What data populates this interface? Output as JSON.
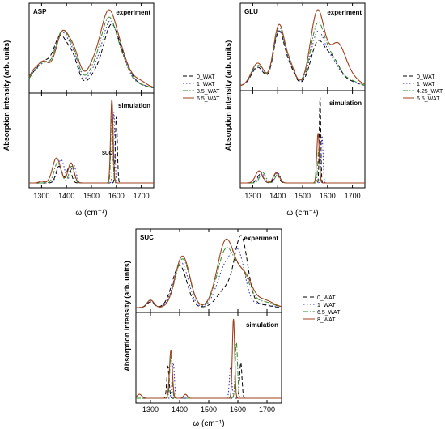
{
  "figure": {
    "ylabel": "Absorption intensity (arb. units)",
    "xlabel": "ω (cm⁻¹)"
  },
  "chart_data": [
    {
      "type": "line",
      "panel": "ASP",
      "xlim": [
        1250,
        1750
      ],
      "xticks": [
        1300,
        1400,
        1500,
        1600,
        1700
      ],
      "legend": [
        "0_WAT",
        "1_WAT",
        "3.5_WAT",
        "6.5_WAT"
      ],
      "subplots": [
        {
          "label": "experiment",
          "series": [
            {
              "name": "0_WAT",
              "peaks": [
                [
                  1262,
                  0.1,
                  18
                ],
                [
                  1305,
                  0.25,
                  25
                ],
                [
                  1375,
                  0.55,
                  30
                ],
                [
                  1428,
                  0.25,
                  22
                ],
                [
                  1520,
                  0.15,
                  30
                ],
                [
                  1580,
                  0.64,
                  30
                ],
                [
                  1635,
                  0.2,
                  28
                ],
                [
                  1690,
                  0.03,
                  30
                ]
              ]
            },
            {
              "name": "1_WAT",
              "peaks": [
                [
                  1262,
                  0.1,
                  18
                ],
                [
                  1305,
                  0.24,
                  25
                ],
                [
                  1380,
                  0.58,
                  30
                ],
                [
                  1430,
                  0.24,
                  22
                ],
                [
                  1515,
                  0.18,
                  30
                ],
                [
                  1575,
                  0.67,
                  30
                ],
                [
                  1630,
                  0.22,
                  28
                ],
                [
                  1690,
                  0.04,
                  30
                ]
              ]
            },
            {
              "name": "3.5_WAT",
              "peaks": [
                [
                  1262,
                  0.1,
                  18
                ],
                [
                  1305,
                  0.26,
                  25
                ],
                [
                  1382,
                  0.6,
                  30
                ],
                [
                  1432,
                  0.25,
                  22
                ],
                [
                  1512,
                  0.2,
                  30
                ],
                [
                  1570,
                  0.7,
                  30
                ],
                [
                  1625,
                  0.24,
                  28
                ],
                [
                  1690,
                  0.04,
                  30
                ]
              ]
            },
            {
              "name": "6.5_WAT",
              "peaks": [
                [
                  1262,
                  0.12,
                  18
                ],
                [
                  1305,
                  0.27,
                  25
                ],
                [
                  1385,
                  0.6,
                  30
                ],
                [
                  1435,
                  0.26,
                  22
                ],
                [
                  1510,
                  0.24,
                  30
                ],
                [
                  1568,
                  0.74,
                  30
                ],
                [
                  1620,
                  0.3,
                  30
                ],
                [
                  1690,
                  0.08,
                  30
                ]
              ]
            }
          ]
        },
        {
          "label": "simulation",
          "annotation": "SUC",
          "series": [
            {
              "name": "0_WAT",
              "peaks": [
                [
                  1370,
                  0.2,
                  12
                ],
                [
                  1410,
                  0.18,
                  10
                ],
                [
                  1600,
                  0.8,
                  4
                ]
              ]
            },
            {
              "name": "1_WAT",
              "peaks": [
                [
                  1378,
                  0.28,
                  14
                ],
                [
                  1428,
                  0.22,
                  10
                ],
                [
                  1590,
                  0.85,
                  4
                ]
              ]
            },
            {
              "name": "3.5_WAT",
              "peaks": [
                [
                  1365,
                  0.25,
                  14
                ],
                [
                  1420,
                  0.2,
                  10
                ],
                [
                  1582,
                  0.9,
                  4
                ]
              ]
            },
            {
              "name": "6.5_WAT",
              "peaks": [
                [
                  1300,
                  0.02,
                  10
                ],
                [
                  1360,
                  0.3,
                  16
                ],
                [
                  1418,
                  0.24,
                  12
                ],
                [
                  1582,
                  1.0,
                  5
                ]
              ]
            }
          ]
        }
      ]
    },
    {
      "type": "line",
      "panel": "GLU",
      "xlim": [
        1250,
        1750
      ],
      "xticks": [
        1300,
        1400,
        1500,
        1600,
        1700
      ],
      "legend": [
        "0_WAT",
        "1_WAT",
        "4.25_WAT",
        "6.5_WAT"
      ],
      "subplots": [
        {
          "label": "experiment",
          "series": [
            {
              "name": "0_WAT",
              "peaks": [
                [
                  1320,
                  0.18,
                  25
                ],
                [
                  1405,
                  0.52,
                  22
                ],
                [
                  1450,
                  0.15,
                  20
                ],
                [
                  1560,
                  0.4,
                  28
                ],
                [
                  1620,
                  0.25,
                  30
                ],
                [
                  1690,
                  0.04,
                  30
                ]
              ]
            },
            {
              "name": "1_WAT",
              "peaks": [
                [
                  1320,
                  0.18,
                  25
                ],
                [
                  1405,
                  0.52,
                  22
                ],
                [
                  1450,
                  0.16,
                  20
                ],
                [
                  1560,
                  0.5,
                  28
                ],
                [
                  1620,
                  0.22,
                  30
                ],
                [
                  1690,
                  0.04,
                  30
                ]
              ]
            },
            {
              "name": "4.25_WAT",
              "peaks": [
                [
                  1320,
                  0.2,
                  25
                ],
                [
                  1405,
                  0.55,
                  22
                ],
                [
                  1450,
                  0.17,
                  20
                ],
                [
                  1560,
                  0.58,
                  28
                ],
                [
                  1620,
                  0.24,
                  30
                ],
                [
                  1690,
                  0.05,
                  30
                ]
              ]
            },
            {
              "name": "6.5_WAT",
              "peaks": [
                [
                  1320,
                  0.22,
                  25
                ],
                [
                  1405,
                  0.58,
                  22
                ],
                [
                  1450,
                  0.18,
                  20
                ],
                [
                  1560,
                  0.72,
                  28
                ],
                [
                  1640,
                  0.4,
                  32
                ],
                [
                  1700,
                  0.06,
                  30
                ]
              ]
            }
          ]
        },
        {
          "label": "simulation",
          "series": [
            {
              "name": "0_WAT",
              "peaks": [
                [
                  1330,
                  0.1,
                  12
                ],
                [
                  1395,
                  0.12,
                  10
                ],
                [
                  1570,
                  1.0,
                  3
                ]
              ]
            },
            {
              "name": "1_WAT",
              "peaks": [
                [
                  1335,
                  0.12,
                  12
                ],
                [
                  1400,
                  0.12,
                  10
                ],
                [
                  1578,
                  0.55,
                  4
                ]
              ]
            },
            {
              "name": "4.25_WAT",
              "peaks": [
                [
                  1340,
                  0.12,
                  12
                ],
                [
                  1400,
                  0.1,
                  10
                ],
                [
                  1565,
                  0.4,
                  4
                ]
              ]
            },
            {
              "name": "6.5_WAT",
              "peaks": [
                [
                  1325,
                  0.14,
                  14
                ],
                [
                  1395,
                  0.12,
                  12
                ],
                [
                  1562,
                  0.58,
                  5
                ]
              ]
            }
          ]
        }
      ]
    },
    {
      "type": "line",
      "panel": "SUC",
      "xlim": [
        1250,
        1750
      ],
      "xticks": [
        1300,
        1400,
        1500,
        1600,
        1700
      ],
      "legend": [
        "0_WAT",
        "1_WAT",
        "6.5_WAT",
        "8_WAT"
      ],
      "subplots": [
        {
          "label": "experiment",
          "series": [
            {
              "name": "0_WAT",
              "peaks": [
                [
                  1300,
                  0.06,
                  12
                ],
                [
                  1400,
                  0.45,
                  25
                ],
                [
                  1560,
                  0.2,
                  30
                ],
                [
                  1612,
                  0.72,
                  22
                ],
                [
                  1680,
                  0.03,
                  30
                ]
              ]
            },
            {
              "name": "1_WAT",
              "peaks": [
                [
                  1300,
                  0.07,
                  12
                ],
                [
                  1405,
                  0.48,
                  25
                ],
                [
                  1560,
                  0.45,
                  30
                ],
                [
                  1605,
                  0.45,
                  22
                ],
                [
                  1680,
                  0.04,
                  30
                ]
              ]
            },
            {
              "name": "6.5_WAT",
              "peaks": [
                [
                  1300,
                  0.08,
                  12
                ],
                [
                  1410,
                  0.52,
                  25
                ],
                [
                  1560,
                  0.62,
                  30
                ],
                [
                  1620,
                  0.3,
                  25
                ],
                [
                  1690,
                  0.06,
                  30
                ]
              ]
            },
            {
              "name": "8_WAT",
              "peaks": [
                [
                  1300,
                  0.08,
                  12
                ],
                [
                  1410,
                  0.55,
                  25
                ],
                [
                  1560,
                  0.72,
                  30
                ],
                [
                  1625,
                  0.3,
                  25
                ],
                [
                  1690,
                  0.08,
                  30
                ]
              ]
            }
          ]
        },
        {
          "label": "simulation",
          "series": [
            {
              "name": "0_WAT",
              "peaks": [
                [
                  1360,
                  0.4,
                  4
                ],
                [
                  1610,
                  0.45,
                  4
                ]
              ]
            },
            {
              "name": "1_WAT",
              "peaks": [
                [
                  1378,
                  0.45,
                  4
                ],
                [
                  1575,
                  0.4,
                  4
                ]
              ]
            },
            {
              "name": "6.5_WAT",
              "peaks": [
                [
                  1370,
                  0.55,
                  4
                ],
                [
                  1595,
                  0.7,
                  4
                ]
              ]
            },
            {
              "name": "8_WAT",
              "peaks": [
                [
                  1262,
                  0.05,
                  8
                ],
                [
                  1370,
                  0.6,
                  5
                ],
                [
                  1420,
                  0.05,
                  6
                ],
                [
                  1585,
                  1.0,
                  4
                ]
              ]
            }
          ]
        }
      ]
    }
  ],
  "colors": {
    "0_WAT": "#000000",
    "1_WAT": "#2b2bb8",
    "wat3": "#2e8b2e",
    "wat4": "#a0401c"
  }
}
